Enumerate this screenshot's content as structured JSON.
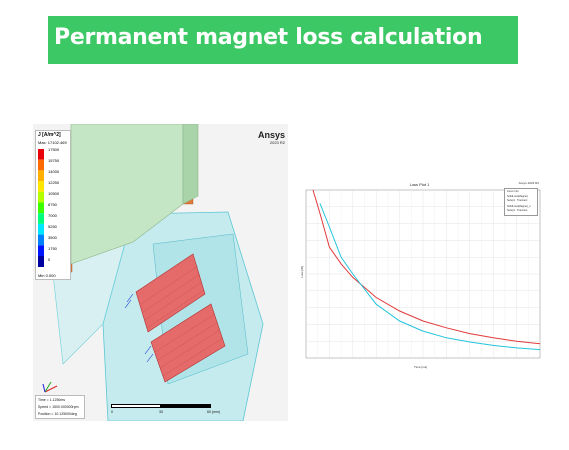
{
  "slide": {
    "title": "Permanent magnet loss calculation",
    "banner_color": "#3cc864"
  },
  "viewport": {
    "brand": "Ansys",
    "version": "2023 R2",
    "legend": {
      "title": "J [A/m^2]",
      "max": "Max: 17102.469",
      "ticks": [
        "17500",
        "15750",
        "14000",
        "12250",
        "10500",
        "8750",
        "7000",
        "5250",
        "3500",
        "1750",
        "0"
      ],
      "min_label": "Min",
      "min_value": "0.000",
      "colors": [
        "#e8000b",
        "#ff6a00",
        "#ffb000",
        "#ffe600",
        "#b4ff00",
        "#3cff00",
        "#00ff7a",
        "#00e6ff",
        "#0082ff",
        "#0014ff",
        "#0000a0"
      ]
    },
    "info": {
      "time": "Time    = 1.1250ms",
      "speed": "Speed   = 1500.000000rpm",
      "position": "Position = 10.125000deg"
    },
    "scale": {
      "left": "0",
      "mid": "30",
      "right": "60 (mm)"
    },
    "icons": [
      "axis-triad-icon"
    ]
  },
  "loss_plot": {
    "title": "Loss Plot 1",
    "tag": "Ansys  2023 R2",
    "legend_entries": [
      "Curve Info",
      "SolidLoss(Magnet)",
      "Setup1 : Transient",
      "SolidLoss(Magnet)_1",
      "Setup1 : Transient"
    ],
    "x_label": "Time [ms]",
    "y_label": "Loss [W]",
    "chart_data": {
      "type": "line",
      "xlim": [
        0,
        10
      ],
      "series": [
        {
          "name": "SolidLoss(Magnet)",
          "color": "#e23a3a",
          "x": [
            0.3,
            0.6,
            1.0,
            1.5,
            2.0,
            3.0,
            4.0,
            5.0,
            6.0,
            7.0,
            8.0,
            9.0,
            10.0
          ],
          "y": [
            1.0,
            0.86,
            0.66,
            0.56,
            0.48,
            0.36,
            0.28,
            0.22,
            0.18,
            0.145,
            0.12,
            0.1,
            0.085
          ]
        },
        {
          "name": "SolidLoss(Magnet)_1",
          "color": "#22c4dc",
          "x": [
            0.6,
            1.0,
            1.5,
            2.0,
            3.0,
            4.0,
            5.0,
            6.0,
            7.0,
            8.0,
            9.0,
            10.0
          ],
          "y": [
            0.92,
            0.78,
            0.6,
            0.5,
            0.32,
            0.22,
            0.16,
            0.12,
            0.095,
            0.075,
            0.06,
            0.05
          ]
        }
      ],
      "grid": true
    }
  }
}
